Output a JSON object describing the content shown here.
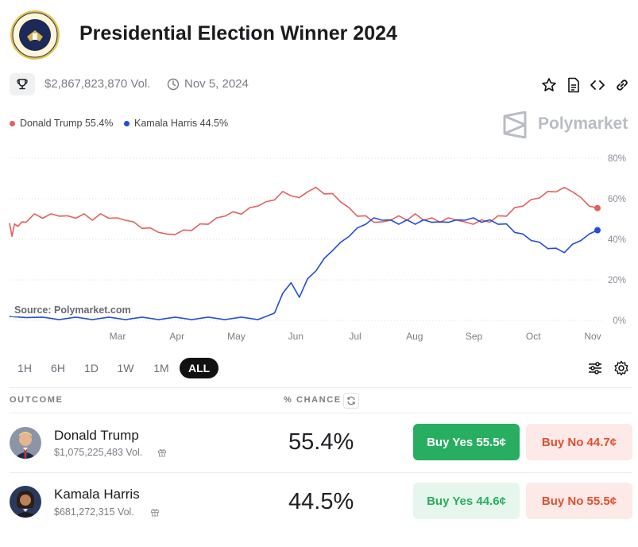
{
  "header": {
    "title": "Presidential Election Winner 2024",
    "volume": "$2,867,823,870 Vol.",
    "date": "Nov 5, 2024"
  },
  "legend": [
    {
      "label": "Donald Trump 55.4%",
      "color": "#e4605b"
    },
    {
      "label": "Kamala Harris 44.5%",
      "color": "#1f4ed8"
    }
  ],
  "brand": "Polymarket",
  "source": "Source: Polymarket.com",
  "range_buttons": [
    "1H",
    "6H",
    "1D",
    "1W",
    "1M",
    "ALL"
  ],
  "active_range": "ALL",
  "table": {
    "outcome_header": "OUTCOME",
    "chance_header": "% CHANCE",
    "rows": [
      {
        "name": "Donald Trump",
        "volume": "$1,075,225,483 Vol.",
        "chance": "55.4%",
        "yes": "Buy Yes 55.5¢",
        "no": "Buy No 44.7¢"
      },
      {
        "name": "Kamala Harris",
        "volume": "$681,272,315 Vol.",
        "chance": "44.5%",
        "yes": "Buy Yes 44.6¢",
        "no": "Buy No 55.5¢"
      }
    ]
  },
  "icons": [
    "seal-icon",
    "trophy-icon",
    "clock-icon",
    "star-icon",
    "document-icon",
    "code-icon",
    "link-icon",
    "polymarket-logo-icon",
    "filter-icon",
    "gear-icon",
    "refresh-icon",
    "gift-icon"
  ],
  "chart_data": {
    "type": "line",
    "x_tick_labels": [
      "Mar",
      "Apr",
      "May",
      "Jun",
      "Jul",
      "Aug",
      "Sep",
      "Oct",
      "Nov"
    ],
    "y_tick_labels": [
      "0%",
      "20%",
      "40%",
      "60%",
      "80%"
    ],
    "ylim": [
      0,
      80
    ],
    "grid": true,
    "series": [
      {
        "name": "Donald Trump",
        "color": "#e4605b",
        "points": [
          [
            0,
            48
          ],
          [
            0.3,
            42
          ],
          [
            0.6,
            47
          ],
          [
            1,
            47
          ],
          [
            1.5,
            48
          ],
          [
            2,
            49
          ],
          [
            3,
            52
          ],
          [
            4,
            51
          ],
          [
            5,
            52
          ],
          [
            6,
            52
          ],
          [
            7,
            51
          ],
          [
            8,
            51
          ],
          [
            9,
            52
          ],
          [
            10,
            50
          ],
          [
            11,
            52
          ],
          [
            12,
            51
          ],
          [
            13,
            50
          ],
          [
            14,
            50
          ],
          [
            15,
            48
          ],
          [
            16,
            46
          ],
          [
            17,
            45
          ],
          [
            18,
            44
          ],
          [
            19,
            42
          ],
          [
            20,
            43
          ],
          [
            21,
            44
          ],
          [
            22,
            45
          ],
          [
            23,
            47
          ],
          [
            24,
            48
          ],
          [
            25,
            50
          ],
          [
            26,
            52
          ],
          [
            27,
            53
          ],
          [
            28,
            53
          ],
          [
            29,
            55
          ],
          [
            30,
            57
          ],
          [
            31,
            58
          ],
          [
            32,
            60
          ],
          [
            33,
            63
          ],
          [
            34,
            62
          ],
          [
            35,
            60
          ],
          [
            36,
            64
          ],
          [
            37,
            65
          ],
          [
            38,
            63
          ],
          [
            39,
            62
          ],
          [
            40,
            59
          ],
          [
            41,
            55
          ],
          [
            42,
            52
          ],
          [
            43,
            51
          ],
          [
            44,
            49
          ],
          [
            45,
            48
          ],
          [
            46,
            50
          ],
          [
            47,
            51
          ],
          [
            48,
            50
          ],
          [
            49,
            52
          ],
          [
            50,
            50
          ],
          [
            51,
            50
          ],
          [
            52,
            49
          ],
          [
            53,
            50
          ],
          [
            54,
            50
          ],
          [
            55,
            48
          ],
          [
            56,
            48
          ],
          [
            57,
            49
          ],
          [
            58,
            49
          ],
          [
            59,
            51
          ],
          [
            60,
            52
          ],
          [
            61,
            55
          ],
          [
            62,
            57
          ],
          [
            63,
            59
          ],
          [
            64,
            61
          ],
          [
            65,
            63
          ],
          [
            66,
            64
          ],
          [
            67,
            65
          ],
          [
            68,
            64
          ],
          [
            69,
            60
          ],
          [
            70,
            57
          ],
          [
            71,
            55.4
          ]
        ]
      },
      {
        "name": "Kamala Harris",
        "color": "#1f4ed8",
        "points": [
          [
            0,
            2
          ],
          [
            2,
            2
          ],
          [
            4,
            1
          ],
          [
            6,
            1
          ],
          [
            8,
            1
          ],
          [
            10,
            1
          ],
          [
            12,
            1
          ],
          [
            14,
            1
          ],
          [
            16,
            1
          ],
          [
            18,
            1
          ],
          [
            20,
            1
          ],
          [
            22,
            1
          ],
          [
            24,
            1
          ],
          [
            26,
            1
          ],
          [
            28,
            1
          ],
          [
            30,
            1
          ],
          [
            32,
            3
          ],
          [
            33,
            14
          ],
          [
            34,
            18
          ],
          [
            35,
            12
          ],
          [
            36,
            20
          ],
          [
            37,
            25
          ],
          [
            38,
            30
          ],
          [
            39,
            35
          ],
          [
            40,
            38
          ],
          [
            41,
            42
          ],
          [
            42,
            45
          ],
          [
            43,
            48
          ],
          [
            44,
            50
          ],
          [
            45,
            50
          ],
          [
            46,
            49
          ],
          [
            47,
            48
          ],
          [
            48,
            49
          ],
          [
            49,
            48
          ],
          [
            50,
            49
          ],
          [
            51,
            49
          ],
          [
            52,
            48
          ],
          [
            53,
            49
          ],
          [
            54,
            49
          ],
          [
            55,
            50
          ],
          [
            56,
            50
          ],
          [
            57,
            49
          ],
          [
            58,
            49
          ],
          [
            59,
            48
          ],
          [
            60,
            47
          ],
          [
            61,
            44
          ],
          [
            62,
            42
          ],
          [
            63,
            40
          ],
          [
            64,
            38
          ],
          [
            65,
            36
          ],
          [
            66,
            35
          ],
          [
            67,
            34
          ],
          [
            68,
            37
          ],
          [
            69,
            40
          ],
          [
            70,
            42
          ],
          [
            71,
            44.5
          ]
        ]
      }
    ],
    "x_domain": [
      0,
      71
    ]
  }
}
